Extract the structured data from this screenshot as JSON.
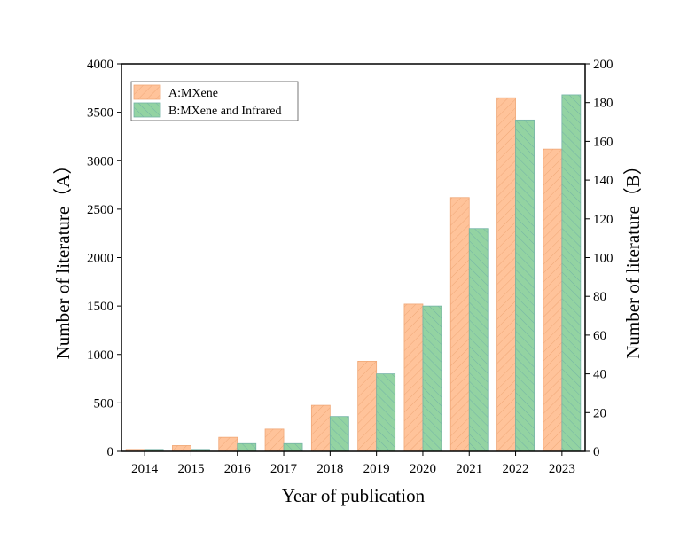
{
  "chart_data": {
    "type": "bar",
    "title": "",
    "xlabel": "Year of publication",
    "ylabel_left": "Number of literature（A）",
    "ylabel_right": "Number of literature（B）",
    "categories": [
      "2014",
      "2015",
      "2016",
      "2017",
      "2018",
      "2019",
      "2020",
      "2021",
      "2022",
      "2023"
    ],
    "ylim_left": [
      0,
      4000
    ],
    "ylim_right": [
      0,
      200
    ],
    "yticks_left": [
      "0",
      "500",
      "1000",
      "1500",
      "2000",
      "2500",
      "3000",
      "3500",
      "4000"
    ],
    "yticks_right": [
      "0",
      "20",
      "40",
      "60",
      "80",
      "100",
      "120",
      "140",
      "160",
      "180",
      "200"
    ],
    "grid": false,
    "legend_position": "top-left",
    "series": [
      {
        "name": "A:MXene",
        "axis": "left",
        "color": "#FFC39A",
        "hatch": "#F0A878",
        "values": [
          20,
          60,
          145,
          230,
          475,
          930,
          1520,
          2620,
          3650,
          3120
        ]
      },
      {
        "name": "B:MXene and Infrared",
        "axis": "right",
        "color": "#93D3A2",
        "hatch": "#74B3A6",
        "values": [
          1,
          1,
          4,
          4,
          18,
          40,
          75,
          115,
          171,
          184
        ]
      }
    ]
  }
}
